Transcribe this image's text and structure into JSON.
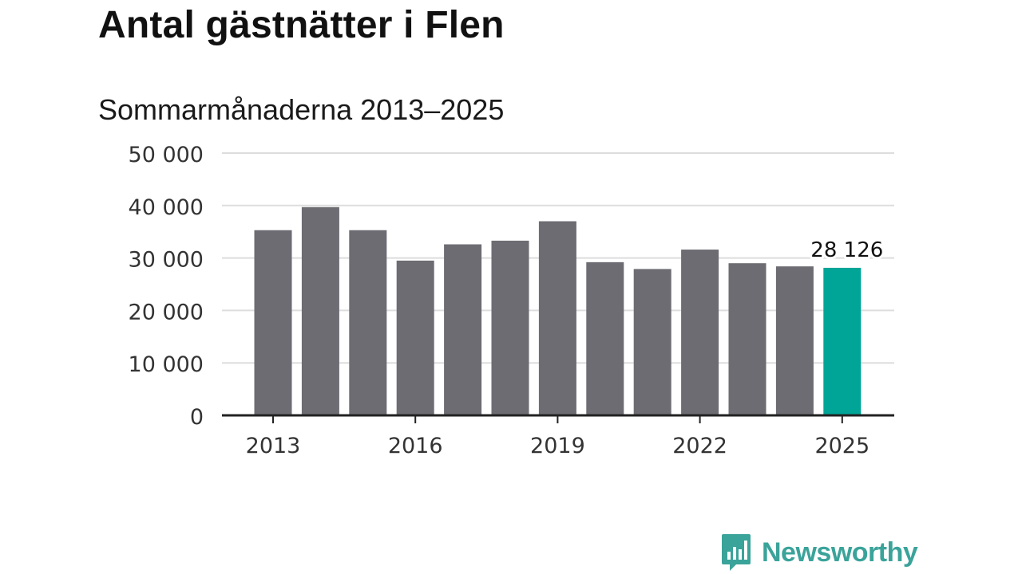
{
  "title": "Antal gästnätter i Flen",
  "subtitle": "Sommarmånaderna 2013–2025",
  "colors": {
    "bar": "#6d6c72",
    "highlight": "#00a597",
    "grid": "#dddddd",
    "axis": "#222222",
    "tick_text": "#333333",
    "brand": "#3aa39a"
  },
  "chart_data": {
    "type": "bar",
    "categories": [
      "2013",
      "2014",
      "2015",
      "2016",
      "2017",
      "2018",
      "2019",
      "2020",
      "2021",
      "2022",
      "2023",
      "2024",
      "2025"
    ],
    "values": [
      35300,
      39700,
      35300,
      29500,
      32600,
      33300,
      37000,
      29200,
      27900,
      31600,
      29000,
      28400,
      28126
    ],
    "highlight_index": 12,
    "data_labels": [
      {
        "index": 12,
        "text": "28 126"
      }
    ],
    "x_ticks": [
      "2013",
      "2016",
      "2019",
      "2022",
      "2025"
    ],
    "y_ticks": [
      0,
      10000,
      20000,
      30000,
      40000,
      50000
    ],
    "y_tick_labels": [
      "0",
      "10 000",
      "20 000",
      "30 000",
      "40 000",
      "50 000"
    ],
    "ylim": [
      0,
      50000
    ],
    "grid": true
  },
  "logo": {
    "text": "Newsworthy",
    "icon": "chart-bubble-icon"
  }
}
